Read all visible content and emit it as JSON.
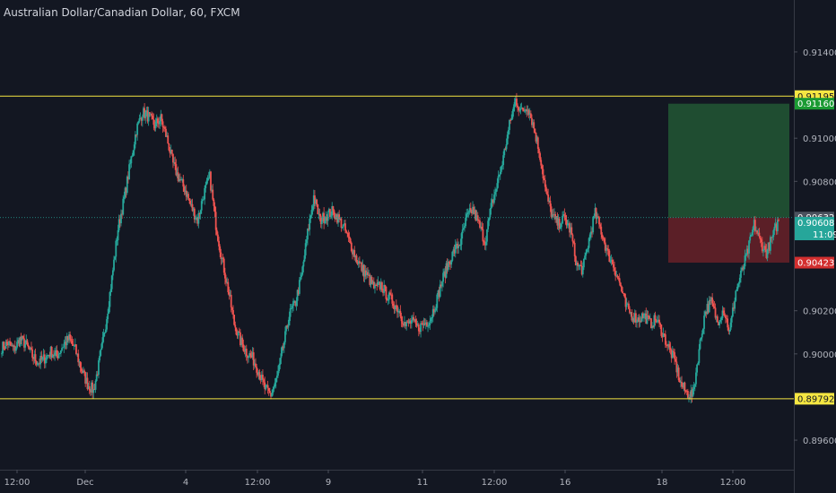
{
  "header": {
    "title": "Australian Dollar/Canadian Dollar, 60, FXCM"
  },
  "colors": {
    "background": "#131722",
    "up_candle": "#26a69a",
    "down_candle": "#ef5350",
    "level_line": "#f5e642",
    "profit_zone": "#1f4d31",
    "loss_zone": "#5b1f27",
    "axis_text": "#b2b5be",
    "current_price_line": "#26a69a"
  },
  "chart_data": {
    "type": "candlestick",
    "symbol": "AUDCAD",
    "interval": "60",
    "source": "FXCM",
    "y_axis": {
      "range": [
        0.8945,
        0.9162
      ],
      "ticks": [
        "0.91400",
        "0.91000",
        "0.90800",
        "0.90200",
        "0.90000",
        "0.89600"
      ]
    },
    "x_axis": {
      "ticks": [
        "12:00",
        "Dec",
        "4",
        "12:00",
        "9",
        "11",
        "12:00",
        "16",
        "18",
        "12:00"
      ]
    },
    "price_levels": [
      {
        "value": 0.91195,
        "label": "0.91195",
        "role": "resistance"
      },
      {
        "value": 0.89792,
        "label": "0.89792",
        "role": "support"
      }
    ],
    "position": {
      "entry": {
        "value": 0.90632,
        "label": "0.90632"
      },
      "target": {
        "value": 0.9116,
        "label": "0.91160"
      },
      "stop": {
        "value": 0.90423,
        "label": "0.90423"
      }
    },
    "current_price": {
      "value": 0.90608,
      "label": "0.90608",
      "countdown": "11:09"
    },
    "close_path": [
      0.9003,
      0.9005,
      0.9002,
      0.9007,
      0.9004,
      0.8999,
      0.8996,
      0.8998,
      0.9001,
      0.8999,
      0.9004,
      0.9007,
      0.9002,
      0.8993,
      0.8986,
      0.8983,
      0.8997,
      0.9014,
      0.9035,
      0.9058,
      0.9072,
      0.9088,
      0.9104,
      0.9112,
      0.911,
      0.9106,
      0.9109,
      0.91,
      0.9088,
      0.9081,
      0.9076,
      0.9068,
      0.9062,
      0.9074,
      0.9082,
      0.906,
      0.9044,
      0.903,
      0.9014,
      0.9006,
      0.9001,
      0.8998,
      0.8992,
      0.8984,
      0.8981,
      0.8989,
      0.9003,
      0.9018,
      0.9024,
      0.9036,
      0.9056,
      0.9073,
      0.9062,
      0.9064,
      0.9066,
      0.9063,
      0.9058,
      0.9051,
      0.9044,
      0.9039,
      0.9035,
      0.903,
      0.9032,
      0.9027,
      0.9024,
      0.902,
      0.9013,
      0.9015,
      0.9012,
      0.9014,
      0.9016,
      0.9024,
      0.9034,
      0.9042,
      0.9048,
      0.9052,
      0.9063,
      0.9067,
      0.906,
      0.9052,
      0.9068,
      0.9079,
      0.9091,
      0.9106,
      0.9118,
      0.9112,
      0.9115,
      0.9105,
      0.9092,
      0.9074,
      0.9064,
      0.906,
      0.9063,
      0.9057,
      0.9041,
      0.9039,
      0.9053,
      0.9065,
      0.9057,
      0.9047,
      0.9041,
      0.9033,
      0.9022,
      0.9018,
      0.9016,
      0.9018,
      0.9014,
      0.9016,
      0.901,
      0.9003,
      0.8997,
      0.8986,
      0.8982,
      0.8981,
      0.9002,
      0.902,
      0.9024,
      0.9015,
      0.9021,
      0.901,
      0.9029,
      0.9038,
      0.9048,
      0.906,
      0.9052,
      0.9047,
      0.9054,
      0.9062
    ]
  }
}
